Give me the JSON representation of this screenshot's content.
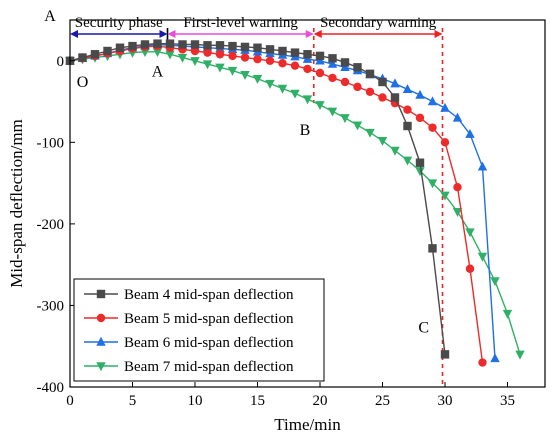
{
  "chart_data": {
    "type": "line",
    "title": "",
    "xlabel": "Time/min",
    "ylabel": "Mid-span deflection/mm",
    "xlim": [
      0,
      38
    ],
    "ylim": [
      -400,
      50
    ],
    "x_ticks": [
      0,
      5,
      10,
      15,
      20,
      25,
      30,
      35
    ],
    "y_ticks": [
      0,
      -100,
      -200,
      -300,
      -400
    ],
    "grid": false,
    "legend_position": "bottom-left",
    "series": [
      {
        "name": "Beam 4 mid-span deflection",
        "color": "#4a4a4a",
        "marker": "square",
        "x": [
          0,
          1,
          2,
          3,
          4,
          5,
          6,
          7,
          8,
          9,
          10,
          11,
          12,
          13,
          14,
          15,
          16,
          17,
          18,
          19,
          20,
          21,
          22,
          23,
          24,
          25,
          26,
          27,
          28,
          29,
          30
        ],
        "y": [
          0,
          4,
          8,
          12,
          16,
          18,
          20,
          21,
          21,
          20,
          20,
          19,
          19,
          18,
          17,
          16,
          14,
          12,
          10,
          8,
          6,
          3,
          -2,
          -8,
          -16,
          -26,
          -45,
          -80,
          -125,
          -230,
          -360
        ]
      },
      {
        "name": "Beam 5 mid-span deflection",
        "color": "#ee2a2a",
        "marker": "circle",
        "x": [
          0,
          1,
          2,
          3,
          4,
          5,
          6,
          7,
          8,
          9,
          10,
          11,
          12,
          13,
          14,
          15,
          16,
          17,
          18,
          19,
          20,
          21,
          22,
          23,
          24,
          25,
          26,
          27,
          28,
          29,
          30,
          31,
          32,
          33
        ],
        "y": [
          0,
          3,
          6,
          9,
          12,
          15,
          17,
          18,
          16,
          14,
          12,
          10,
          8,
          6,
          4,
          2,
          0,
          -3,
          -6,
          -10,
          -15,
          -21,
          -26,
          -32,
          -38,
          -45,
          -52,
          -60,
          -70,
          -82,
          -100,
          -155,
          -255,
          -370
        ]
      },
      {
        "name": "Beam 6 mid-span deflection",
        "color": "#1f6fe6",
        "marker": "triangle-up",
        "x": [
          0,
          1,
          2,
          3,
          4,
          5,
          6,
          7,
          8,
          9,
          10,
          11,
          12,
          13,
          14,
          15,
          16,
          17,
          18,
          19,
          20,
          21,
          22,
          23,
          24,
          25,
          26,
          27,
          28,
          29,
          30,
          31,
          32,
          33,
          34
        ],
        "y": [
          0,
          3,
          6,
          9,
          13,
          16,
          18,
          20,
          19,
          18,
          17,
          16,
          15,
          14,
          13,
          11,
          9,
          7,
          5,
          2,
          0,
          -4,
          -8,
          -12,
          -17,
          -22,
          -28,
          -35,
          -42,
          -50,
          -58,
          -70,
          -90,
          -130,
          -365
        ]
      },
      {
        "name": "Beam 7 mid-span deflection",
        "color": "#2fb066",
        "marker": "triangle-down",
        "x": [
          0,
          1,
          2,
          3,
          4,
          5,
          6,
          7,
          8,
          9,
          10,
          11,
          12,
          13,
          14,
          15,
          16,
          17,
          18,
          19,
          20,
          21,
          22,
          23,
          24,
          25,
          26,
          27,
          28,
          29,
          30,
          31,
          32,
          33,
          34,
          35,
          36
        ],
        "y": [
          0,
          2,
          4,
          6,
          8,
          10,
          11,
          11,
          8,
          4,
          0,
          -4,
          -8,
          -12,
          -17,
          -22,
          -28,
          -34,
          -40,
          -47,
          -54,
          -62,
          -70,
          -79,
          -88,
          -98,
          -110,
          -122,
          -135,
          -150,
          -165,
          -185,
          -210,
          -240,
          -270,
          -310,
          -360
        ]
      }
    ],
    "phases": [
      {
        "label": "Security phase",
        "start": 0,
        "end": 7.8,
        "color": "#1a1aa8"
      },
      {
        "label": "First-level warning",
        "start": 7.8,
        "end": 19.5,
        "color": "#e64ed6"
      },
      {
        "label": "Secondary warning",
        "start": 19.5,
        "end": 29.8,
        "color": "#ee2222"
      }
    ],
    "phase_boundaries": [
      {
        "x": 7.8,
        "y_bottom": 20,
        "color": "#000000",
        "style": "solid"
      },
      {
        "x": 19.5,
        "y_bottom": -52,
        "color": "#ee2222",
        "style": "dashed"
      },
      {
        "x": 29.8,
        "y_bottom": -400,
        "color": "#ee2222",
        "style": "dashed"
      }
    ],
    "point_labels": [
      {
        "text": "A",
        "x": -1.6,
        "y": 55
      },
      {
        "text": "O",
        "x": 1.0,
        "y": -26
      },
      {
        "text": "A",
        "x": 7.0,
        "y": -13
      },
      {
        "text": "B",
        "x": 18.8,
        "y": -85
      },
      {
        "text": "C",
        "x": 28.3,
        "y": -327
      }
    ]
  }
}
